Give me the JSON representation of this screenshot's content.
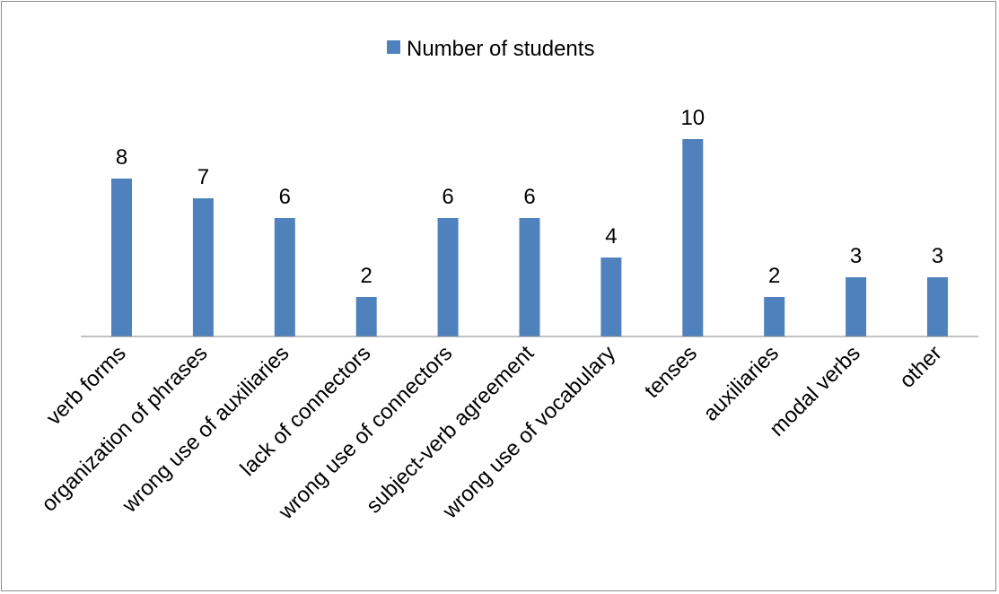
{
  "chart_data": {
    "type": "bar",
    "categories": [
      "verb forms",
      "organization of phrases",
      "wrong use of auxiliaries",
      "lack of connectors",
      "wrong use of connectors",
      "subject-verb agreement",
      "wrong use of vocabulary",
      "tenses",
      "auxiliaries",
      "modal verbs",
      "other"
    ],
    "series": [
      {
        "name": "Number of students",
        "values": [
          8,
          7,
          6,
          2,
          6,
          6,
          4,
          10,
          2,
          3,
          3
        ]
      }
    ],
    "data_labels": true,
    "ylim": [
      0,
      10
    ],
    "grid": false,
    "legend_position": "top",
    "bar_color": "#4f81bd"
  }
}
